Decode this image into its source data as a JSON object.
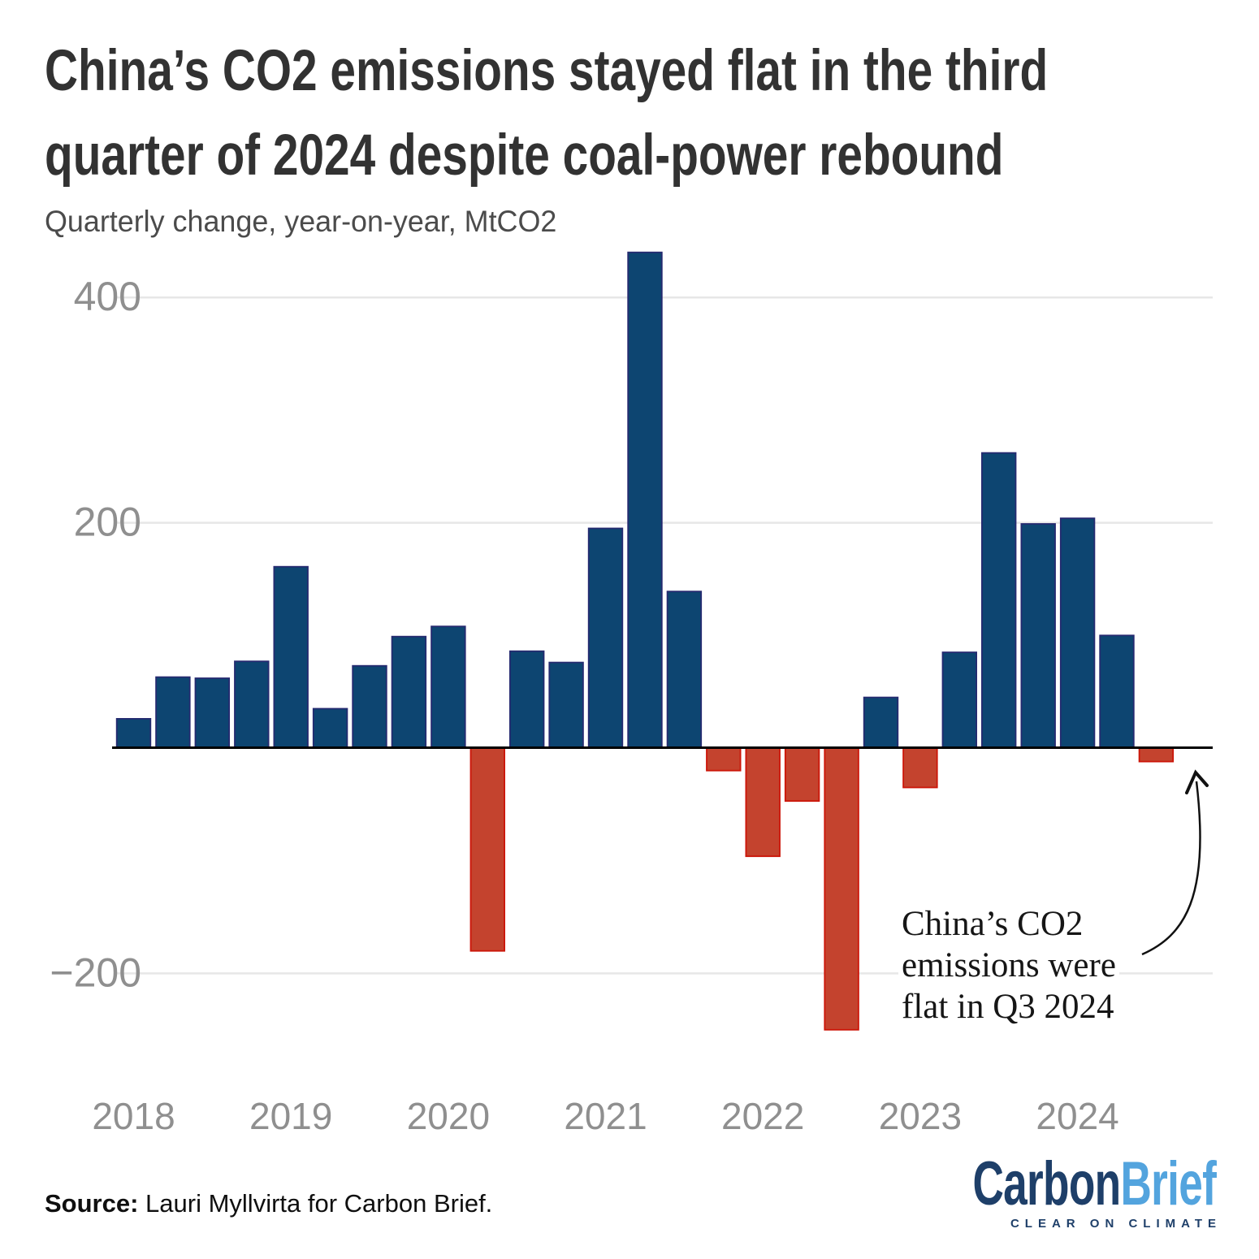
{
  "header": {
    "title_line1": "China’s CO2 emissions stayed flat in the third",
    "title_line2": "quarter of 2024 despite coal-power rebound",
    "subtitle": "Quarterly change, year-on-year, MtCO2"
  },
  "chart_data": {
    "type": "bar",
    "title": "China’s CO2 emissions stayed flat in the third quarter of 2024 despite coal-power rebound",
    "subtitle": "Quarterly change, year-on-year, MtCO2",
    "unit": "MtCO2",
    "categories": [
      "2018 Q1",
      "2018 Q2",
      "2018 Q3",
      "2018 Q4",
      "2019 Q1",
      "2019 Q2",
      "2019 Q3",
      "2019 Q4",
      "2020 Q1",
      "2020 Q2",
      "2020 Q3",
      "2020 Q4",
      "2021 Q1",
      "2021 Q2",
      "2021 Q3",
      "2021 Q4",
      "2022 Q1",
      "2022 Q2",
      "2022 Q3",
      "2022 Q4",
      "2023 Q1",
      "2023 Q2",
      "2023 Q3",
      "2023 Q4",
      "2024 Q1",
      "2024 Q2",
      "2024 Q3"
    ],
    "values": [
      26,
      63,
      62,
      77,
      161,
      35,
      73,
      99,
      108,
      -180,
      86,
      76,
      195,
      440,
      139,
      -20,
      -96,
      -47,
      -250,
      45,
      -35,
      85,
      262,
      199,
      204,
      100,
      -12
    ],
    "xtick_labels": [
      "2018",
      "2019",
      "2020",
      "2021",
      "2022",
      "2023",
      "2024"
    ],
    "ytick_values": [
      400,
      200,
      -200
    ],
    "ytick_labels": [
      "400",
      "200",
      "−200"
    ],
    "ylim": [
      -300,
      460
    ],
    "grid": true,
    "legend": false,
    "bar_positive_color": "#0d4571",
    "bar_positive_stroke": "#252a70",
    "bar_negative_color": "#c4432e",
    "bar_negative_stroke": "#cc1508",
    "gridline_color": "#e7e7e7",
    "baseline_color": "#000000",
    "axis_label_color": "#8f8f8f",
    "annotation": "China’s CO2 emissions were flat in Q3 2024"
  },
  "annotation": {
    "line1": "China’s CO2",
    "line2": "emissions were",
    "line3": "flat in Q3 2024"
  },
  "footer": {
    "source_label": "Source:",
    "source_text": "Lauri Myllvirta for Carbon Brief.",
    "logo": {
      "carbon": "Carbon",
      "brief": "Brief",
      "tagline": "CLEAR ON CLIMATE",
      "carbon_color": "#1e3f69",
      "brief_color": "#53a4de",
      "tagline_color": "#1e3f69"
    }
  }
}
